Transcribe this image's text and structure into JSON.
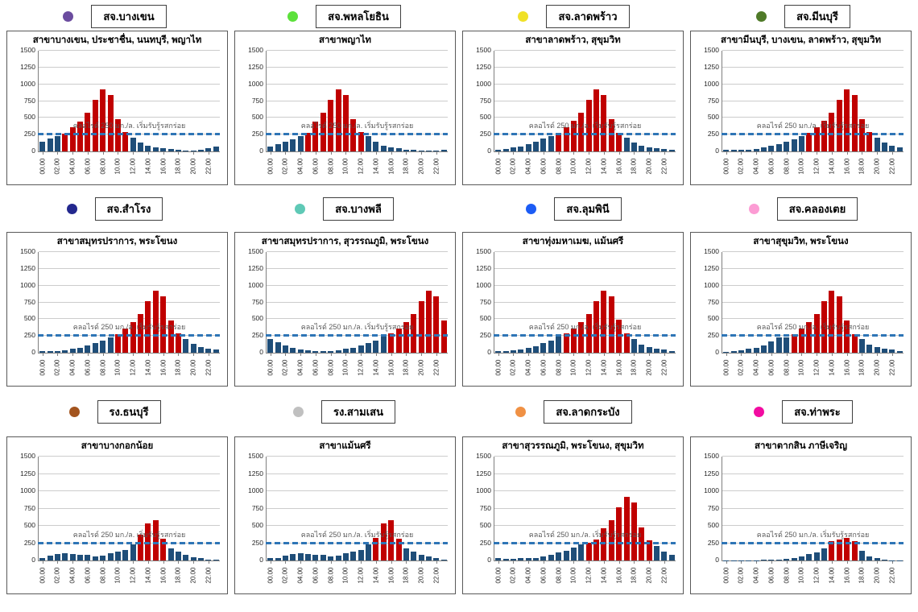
{
  "threshold": {
    "value": 250,
    "annotation": "คลอไรด์ 250 มก./ล. เริ่มรับรู้รสกร่อย",
    "line_color": "#2E75B6"
  },
  "colors": {
    "bar_below_threshold": "#1F4E79",
    "bar_above_threshold": "#C00000",
    "gridline": "#cccccc",
    "axis": "#7f7f7f"
  },
  "chart_data": {
    "type": "bar",
    "shared": {
      "ylim": [
        0,
        1500
      ],
      "y_ticks": [
        0,
        250,
        500,
        750,
        1000,
        1250,
        1500
      ],
      "x_hours": 24,
      "x_tick_labels": [
        "00.00",
        "02.00",
        "04.00",
        "06.00",
        "08.00",
        "10.00",
        "12.00",
        "14.00",
        "16.00",
        "18.00",
        "20.00",
        "22.00"
      ],
      "grid": true,
      "threshold_value": 250
    },
    "charts": [
      {
        "legend_label": "สจ.บางเขน",
        "legend_color": "#6B4C9F",
        "title": "สาขาบางเขน, ประชาชื่น, นนทบุรี, พญาไท",
        "values": [
          150,
          190,
          230,
          270,
          360,
          440,
          580,
          770,
          920,
          840,
          480,
          290,
          210,
          130,
          90,
          60,
          50,
          40,
          20,
          10,
          10,
          30,
          50,
          70
        ]
      },
      {
        "legend_label": "สจ.พหลโยธิน",
        "legend_color": "#5CE13B",
        "title": "สาขาพญาไท",
        "values": [
          70,
          110,
          150,
          185,
          225,
          280,
          450,
          580,
          770,
          920,
          840,
          480,
          290,
          230,
          140,
          90,
          65,
          45,
          30,
          20,
          10,
          10,
          15,
          25
        ]
      },
      {
        "legend_label": "สจ.ลาดพร้าว",
        "legend_color": "#F0E127",
        "title": "สาขาลาดพร้าว, สุขุมวิท",
        "values": [
          25,
          35,
          55,
          75,
          110,
          145,
          190,
          230,
          280,
          360,
          460,
          580,
          770,
          920,
          840,
          480,
          280,
          210,
          135,
          90,
          65,
          50,
          35,
          20
        ]
      },
      {
        "legend_label": "สจ.มีนบุรี",
        "legend_color": "#4F7A28",
        "title": "สาขามีนบุรี, บางเขน, ลาดพร้าว, สุขุมวิท",
        "values": [
          30,
          30,
          25,
          30,
          40,
          55,
          80,
          110,
          150,
          185,
          225,
          280,
          360,
          460,
          580,
          770,
          920,
          840,
          480,
          290,
          210,
          135,
          90,
          65
        ]
      },
      {
        "legend_label": "สจ.สำโรง",
        "legend_color": "#23288E",
        "title": "สาขาสมุทรปราการ, พระโขนง",
        "values": [
          20,
          20,
          25,
          40,
          55,
          75,
          105,
          145,
          180,
          225,
          280,
          360,
          460,
          580,
          770,
          920,
          840,
          480,
          290,
          210,
          135,
          90,
          60,
          45
        ]
      },
      {
        "legend_label": "สจ.บางพลี",
        "legend_color": "#5FC9B6",
        "title": "สาขาสมุทรปราการ, สุวรรณภูมิ, พระโขนง",
        "values": [
          210,
          155,
          105,
          75,
          50,
          35,
          25,
          20,
          25,
          35,
          55,
          75,
          105,
          145,
          185,
          240,
          290,
          360,
          460,
          580,
          770,
          920,
          840,
          480
        ]
      },
      {
        "legend_label": "สจ.ลุมพินี",
        "legend_color": "#1C5CF5",
        "title": "สาขาทุ่งมหาเมฆ, แม้นศรี",
        "values": [
          20,
          25,
          35,
          50,
          75,
          100,
          145,
          175,
          235,
          290,
          360,
          460,
          580,
          770,
          920,
          840,
          490,
          290,
          200,
          120,
          90,
          60,
          45,
          30
        ]
      },
      {
        "legend_label": "สจ.คลองเตย",
        "legend_color": "#FC9CD4",
        "title": "สาขาสุขุมวิท, พระโขนง",
        "values": [
          15,
          20,
          35,
          55,
          75,
          105,
          170,
          225,
          230,
          280,
          360,
          460,
          580,
          770,
          920,
          840,
          480,
          280,
          200,
          125,
          85,
          55,
          45,
          30
        ]
      },
      {
        "legend_label": "รง.ธนบุรี",
        "legend_color": "#A3541E",
        "title": "สาขาบางกอกน้อย",
        "values": [
          40,
          75,
          90,
          100,
          90,
          85,
          80,
          55,
          75,
          105,
          130,
          155,
          235,
          370,
          540,
          580,
          310,
          175,
          130,
          85,
          50,
          30,
          15,
          15
        ]
      },
      {
        "legend_label": "รง.สามเสน",
        "legend_color": "#C0C0C0",
        "title": "สาขาแม้นศรี",
        "values": [
          30,
          40,
          65,
          90,
          100,
          95,
          85,
          80,
          55,
          75,
          100,
          130,
          155,
          230,
          330,
          540,
          580,
          310,
          175,
          130,
          85,
          55,
          30,
          15
        ]
      },
      {
        "legend_label": "สจ.ลาดกระบัง",
        "legend_color": "#F09144",
        "title": "สาขาสุวรรณภูมิ, พระโขนง, สุขุมวิท",
        "values": [
          40,
          25,
          25,
          30,
          30,
          35,
          55,
          80,
          115,
          140,
          185,
          230,
          260,
          300,
          460,
          580,
          770,
          920,
          840,
          480,
          290,
          210,
          130,
          85
        ]
      },
      {
        "legend_label": "สจ.ท่าพระ",
        "legend_color": "#F20CA1",
        "title": "สาขาตากสิน ภาษีเจริญ",
        "values": [
          5,
          5,
          5,
          5,
          5,
          10,
          10,
          15,
          25,
          40,
          60,
          90,
          115,
          170,
          280,
          300,
          330,
          280,
          135,
          60,
          35,
          10,
          5,
          5
        ]
      }
    ]
  }
}
